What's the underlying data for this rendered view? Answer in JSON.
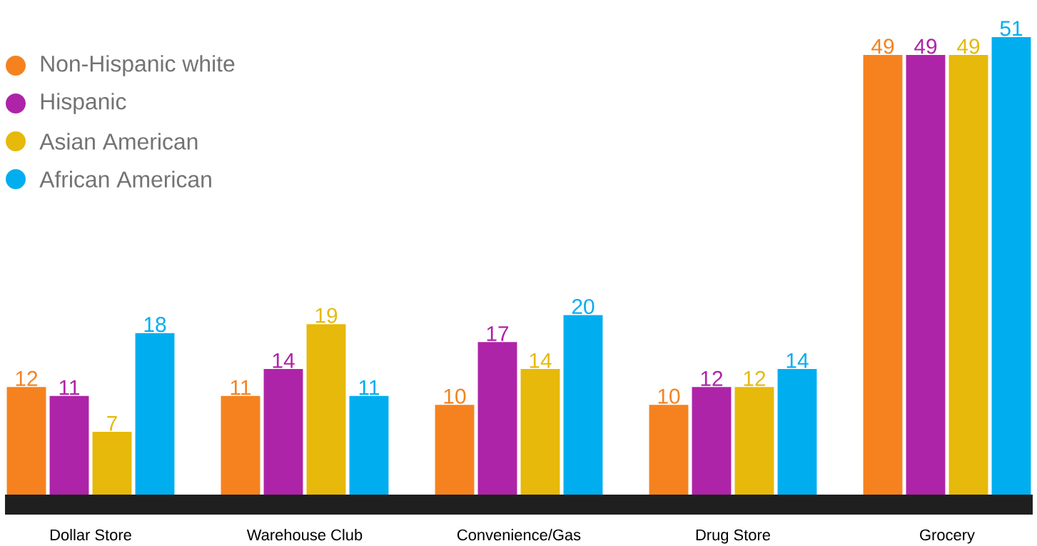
{
  "chart_data": {
    "type": "bar",
    "categories": [
      "Dollar Store",
      "Warehouse Club",
      "Convenience/Gas",
      "Drug Store",
      "Grocery"
    ],
    "series": [
      {
        "name": "Non-Hispanic white",
        "color": "#f5821f",
        "values": [
          12,
          11,
          10,
          10,
          49
        ]
      },
      {
        "name": "Hispanic",
        "color": "#ae24a8",
        "values": [
          11,
          14,
          17,
          12,
          49
        ]
      },
      {
        "name": "Asian American",
        "color": "#e6b90a",
        "values": [
          7,
          19,
          14,
          12,
          49
        ]
      },
      {
        "name": "African American",
        "color": "#00aeef",
        "values": [
          18,
          11,
          20,
          14,
          51
        ]
      }
    ],
    "data_labels": true,
    "legend": "top left",
    "marker": "circle"
  }
}
